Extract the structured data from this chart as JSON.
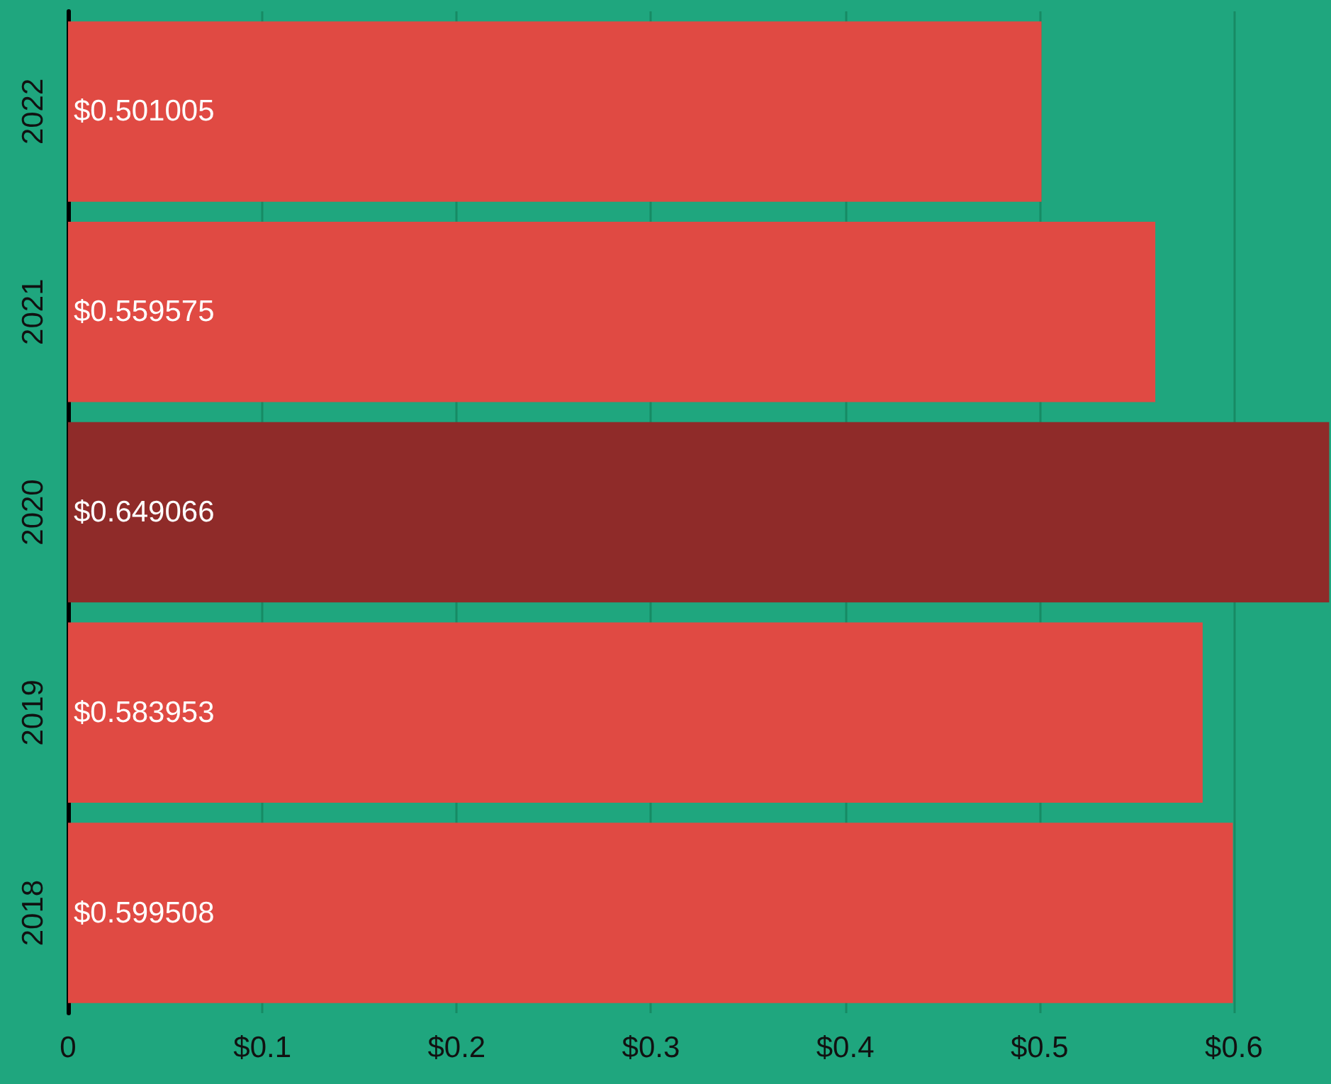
{
  "chart_data": {
    "type": "bar",
    "orientation": "horizontal",
    "categories": [
      "2022",
      "2021",
      "2020",
      "2019",
      "2018"
    ],
    "values": [
      0.501005,
      0.559575,
      0.649066,
      0.583953,
      0.599508
    ],
    "colors": [
      "#e04a43",
      "#e04a43",
      "#8f2b29",
      "#e04a43",
      "#e04a43"
    ],
    "value_labels": [
      "$0.501005",
      "$0.559575",
      "$0.649066",
      "$0.583953",
      "$0.599508"
    ],
    "xlim": [
      0,
      0.65
    ],
    "xticks": [
      0,
      {
        "value": 0.1,
        "label": "$0.1"
      },
      {
        "value": 0.2,
        "label": "$0.2"
      },
      {
        "value": 0.3,
        "label": "$0.3"
      },
      {
        "value": 0.4,
        "label": "$0.4"
      },
      {
        "value": 0.5,
        "label": "$0.5"
      },
      {
        "value": 0.6,
        "label": "$0.6"
      }
    ],
    "grid": "x"
  }
}
